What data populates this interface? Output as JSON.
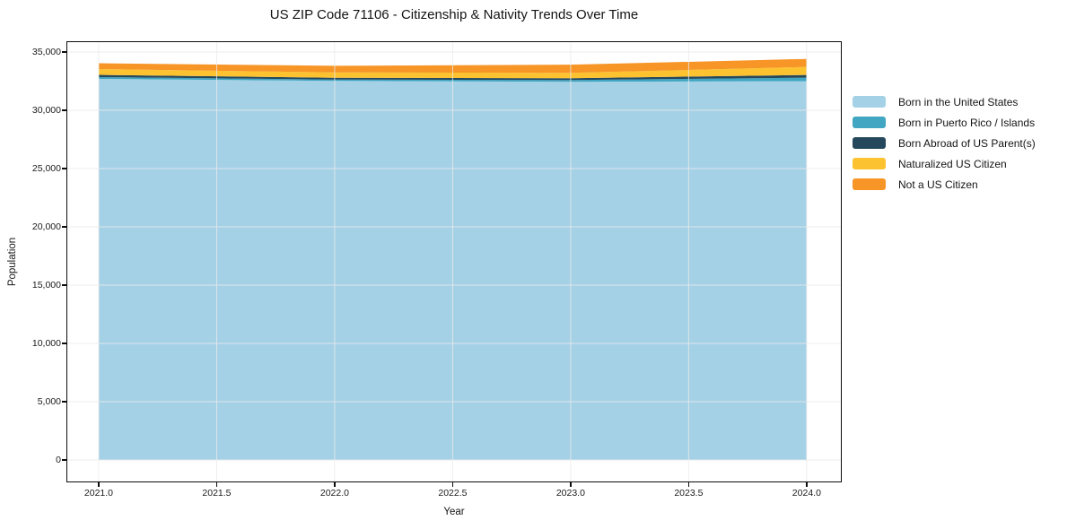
{
  "title": "US ZIP Code 71106 - Citizenship & Nativity Trends Over Time",
  "chart_data": {
    "type": "area",
    "stacked": true,
    "title": "US ZIP Code 71106 - Citizenship & Nativity Trends Over Time",
    "xlabel": "Year",
    "ylabel": "Population",
    "x": [
      2021,
      2022,
      2023,
      2024
    ],
    "series": [
      {
        "name": "Born in the United States",
        "color": "#a5d1e6",
        "values": [
          32700,
          32520,
          32450,
          32500
        ]
      },
      {
        "name": "Born in Puerto Rico / Islands",
        "color": "#40a6c2",
        "values": [
          150,
          120,
          150,
          300
        ]
      },
      {
        "name": "Born Abroad of US Parent(s)",
        "color": "#25485c",
        "values": [
          190,
          150,
          155,
          230
        ]
      },
      {
        "name": "Naturalized US Citizen",
        "color": "#fcc230",
        "values": [
          500,
          460,
          460,
          690
        ]
      },
      {
        "name": "Not a US Citizen",
        "color": "#f79527",
        "values": [
          500,
          570,
          700,
          690
        ]
      }
    ],
    "totals": [
      34040,
      33820,
      33915,
      34410
    ],
    "xlim": [
      2020.867,
      2024.145
    ],
    "ylim": [
      -1850,
      35850
    ],
    "x_ticks": [
      2021.0,
      2021.5,
      2022.0,
      2022.5,
      2023.0,
      2023.5,
      2024.0
    ],
    "x_tick_labels": [
      "2021.0",
      "2021.5",
      "2022.0",
      "2022.5",
      "2023.0",
      "2023.5",
      "2024.0"
    ],
    "y_ticks": [
      0,
      5000,
      10000,
      15000,
      20000,
      25000,
      30000,
      35000
    ],
    "y_tick_labels": [
      "0",
      "5,000",
      "10,000",
      "15,000",
      "20,000",
      "25,000",
      "30,000",
      "35,000"
    ],
    "grid": true,
    "grid_color": "#ebebeb",
    "spine_color": "#0d0d0d",
    "background_color": "#ffffff",
    "legend_position": "right-outside"
  }
}
